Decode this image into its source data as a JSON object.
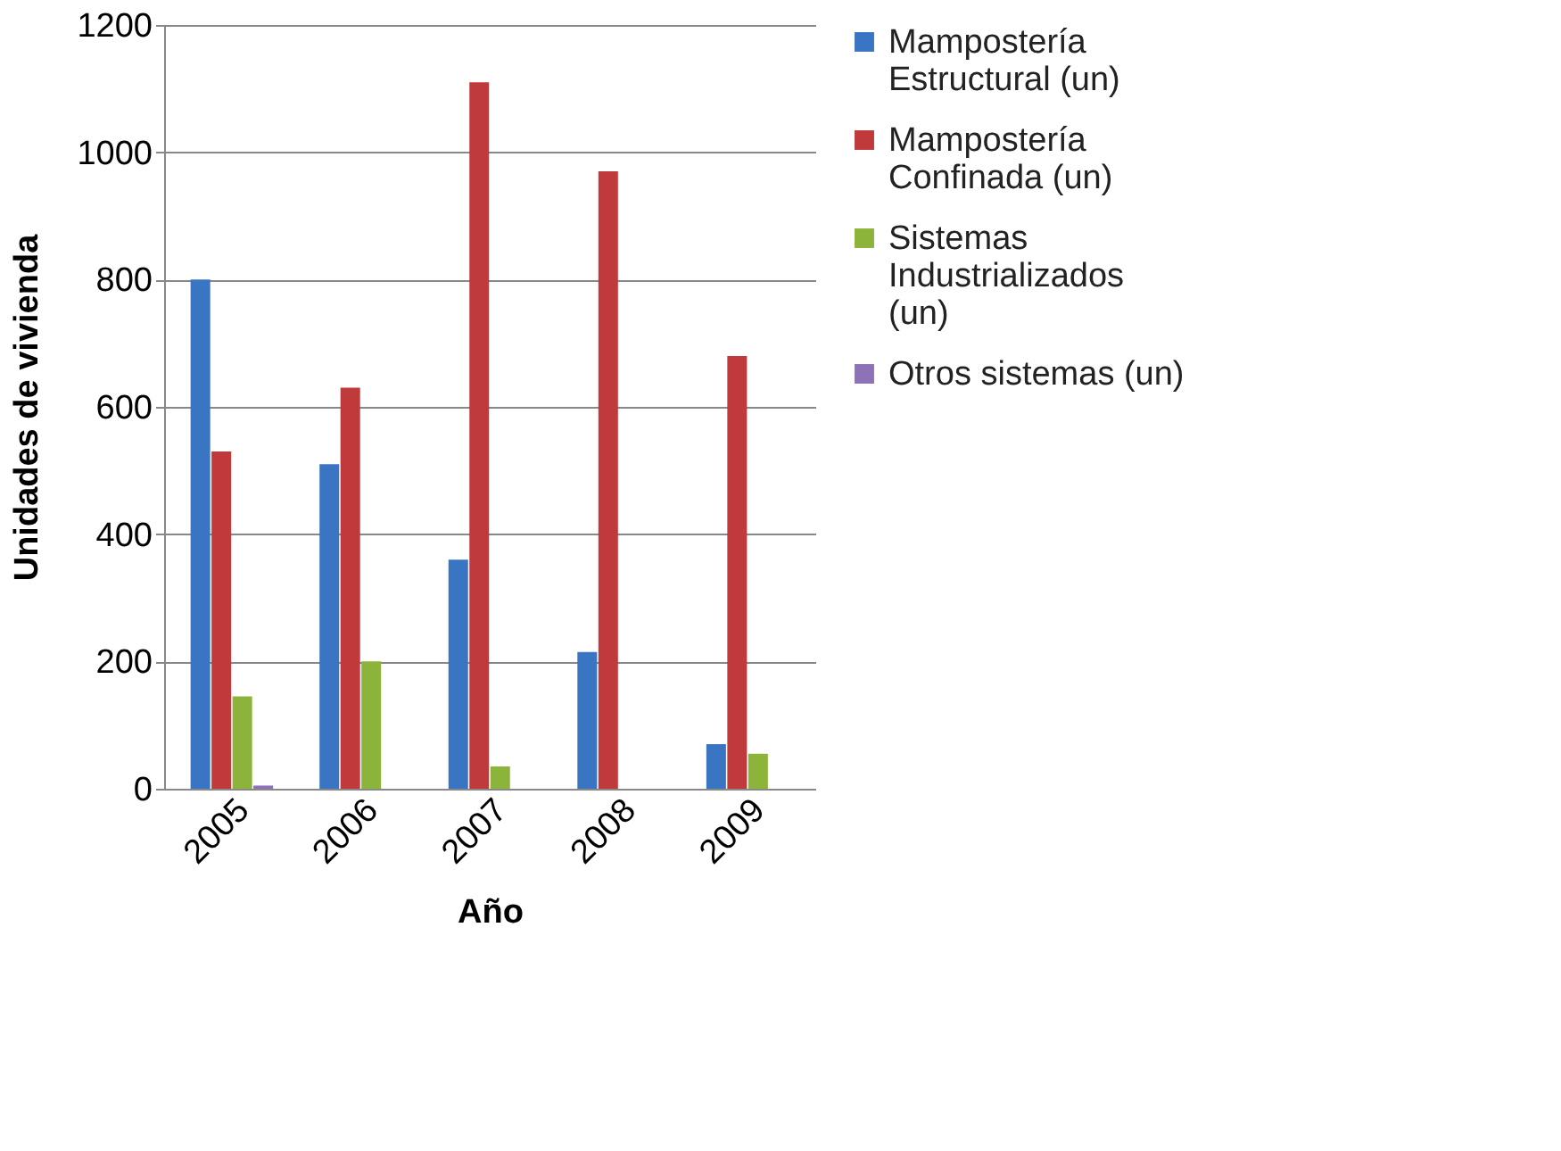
{
  "chart_data": {
    "type": "bar",
    "xlabel": "Año",
    "ylabel": "Unidades de vivienda",
    "categories": [
      "2005",
      "2006",
      "2007",
      "2008",
      "2009"
    ],
    "series": [
      {
        "name": "Mampostería Estructural (un)",
        "color": "#3a75c4",
        "values": [
          800,
          510,
          360,
          215,
          70
        ]
      },
      {
        "name": "Mampostería Confinada (un)",
        "color": "#c0393b",
        "values": [
          530,
          630,
          1110,
          970,
          680
        ]
      },
      {
        "name": "Sistemas Industrializados (un)",
        "color": "#8cb33a",
        "values": [
          145,
          200,
          35,
          null,
          55
        ]
      },
      {
        "name": "Otros sistemas (un)",
        "color": "#8e72b8",
        "values": [
          5,
          null,
          null,
          null,
          null
        ]
      }
    ],
    "ylim": [
      0,
      1200
    ],
    "yticks": [
      0,
      200,
      400,
      600,
      800,
      1000,
      1200
    ],
    "grid": "y",
    "legend": "right"
  }
}
